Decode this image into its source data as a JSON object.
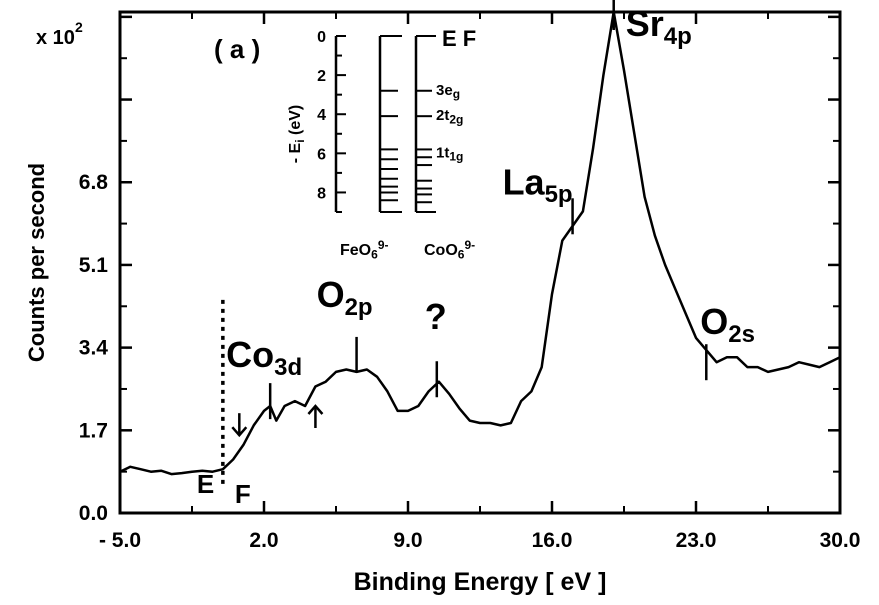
{
  "chart_data": {
    "type": "line",
    "panel_label": "( a )",
    "xlabel": "Binding Energy [ eV ]",
    "ylabel": "Counts per second",
    "y_multiplier": "x 10",
    "y_multiplier_exp": "2",
    "xlim": [
      -5.0,
      30.0
    ],
    "ylim": [
      0.0,
      10.3
    ],
    "x_ticks": [
      -5.0,
      2.0,
      9.0,
      16.0,
      23.0,
      30.0
    ],
    "x_tick_labels": [
      "- 5.0",
      "2.0",
      "9.0",
      "16.0",
      "23.0",
      "30.0"
    ],
    "y_ticks": [
      0.0,
      1.7,
      3.4,
      5.1,
      6.8
    ],
    "y_tick_labels": [
      "0.0",
      "1.7",
      "3.4",
      "5.1",
      "6.8"
    ],
    "grid": false,
    "series": [
      {
        "x": [
          -5.0,
          -4.5,
          -4.0,
          -3.5,
          -3.0,
          -2.5,
          -2.0,
          -1.5,
          -1.0,
          -0.5,
          0.0,
          0.5,
          1.0,
          1.5,
          2.0,
          2.3,
          2.6,
          3.0,
          3.5,
          4.0,
          4.5,
          5.0,
          5.5,
          6.0,
          6.5,
          7.0,
          7.5,
          8.0,
          8.5,
          9.0,
          9.5,
          10.0,
          10.5,
          11.0,
          11.5,
          12.0,
          12.5,
          13.0,
          13.5,
          14.0,
          14.5,
          15.0,
          15.5,
          16.0,
          16.5,
          17.0,
          17.5,
          18.0,
          18.5,
          19.0,
          19.5,
          20.0,
          20.5,
          21.0,
          21.5,
          22.0,
          22.5,
          23.0,
          23.5,
          24.0,
          24.5,
          25.0,
          25.5,
          26.0,
          26.5,
          27.0,
          27.5,
          28.0,
          28.5,
          29.0,
          29.5,
          30.0
        ],
        "y": [
          0.85,
          0.95,
          0.9,
          0.85,
          0.87,
          0.8,
          0.82,
          0.85,
          0.87,
          0.85,
          0.9,
          1.1,
          1.4,
          1.8,
          2.1,
          2.2,
          1.9,
          2.2,
          2.3,
          2.2,
          2.6,
          2.7,
          2.9,
          2.95,
          2.9,
          2.95,
          2.8,
          2.5,
          2.1,
          2.1,
          2.2,
          2.5,
          2.7,
          2.45,
          2.15,
          1.9,
          1.85,
          1.85,
          1.8,
          1.85,
          2.3,
          2.5,
          3.0,
          4.5,
          5.6,
          5.9,
          6.2,
          7.5,
          9.0,
          10.3,
          9.1,
          7.8,
          6.5,
          5.7,
          5.1,
          4.6,
          4.1,
          3.6,
          3.35,
          3.1,
          3.2,
          3.2,
          3.0,
          3.0,
          2.9,
          2.95,
          3.0,
          3.1,
          3.05,
          3.0,
          3.1,
          3.2
        ]
      }
    ],
    "fermi_level": {
      "x": 0.0,
      "label_main": "E",
      "label_sub": "F"
    },
    "annotations": [
      {
        "main": "Co",
        "sub": "3d",
        "x": 2.3,
        "y": 2.3
      },
      {
        "main": "O",
        "sub": "2p",
        "x": 6.5,
        "y": 3.25
      },
      {
        "main": "?",
        "sub": "",
        "x": 10.4,
        "y": 2.75
      },
      {
        "main": "La",
        "sub": "5p",
        "x": 17.0,
        "y": 6.1
      },
      {
        "main": "Sr",
        "sub": "4p",
        "x": 19.0,
        "y": 10.3
      },
      {
        "main": "O",
        "sub": "2s",
        "x": 23.5,
        "y": 3.1
      }
    ],
    "arrows": [
      {
        "x": 0.8,
        "y": 1.6,
        "direction": "down"
      },
      {
        "x": 4.5,
        "y": 2.2,
        "direction": "up"
      }
    ],
    "inset": {
      "ylabel": "- E",
      "ylabel_sub": "i",
      "ylabel_unit": " (eV)",
      "ylim": [
        0,
        9
      ],
      "y_ticks": [
        0,
        2,
        4,
        6,
        8
      ],
      "y_tick_labels": [
        "0",
        "2",
        "4",
        "6",
        "8"
      ],
      "top_label": "E F",
      "series_labels": [
        "FeO",
        "CoO"
      ],
      "series_label_subs": [
        "6",
        "6"
      ],
      "series_label_sups": [
        "9-",
        "9-"
      ],
      "level_labels": [
        {
          "main": "3e",
          "sub": "g",
          "y": 2.8
        },
        {
          "main": "2t",
          "sub": "2g",
          "y": 4.1
        },
        {
          "main": "1t",
          "sub": "1g",
          "y": 6.0
        }
      ],
      "feo_levels": [
        2.8,
        4.1,
        5.8,
        6.3,
        6.8,
        7.3,
        7.7,
        8.0,
        8.4
      ],
      "coo_levels": [
        2.8,
        4.1,
        5.8,
        6.2,
        6.6,
        7.4,
        7.8,
        8.1,
        8.5
      ]
    }
  }
}
